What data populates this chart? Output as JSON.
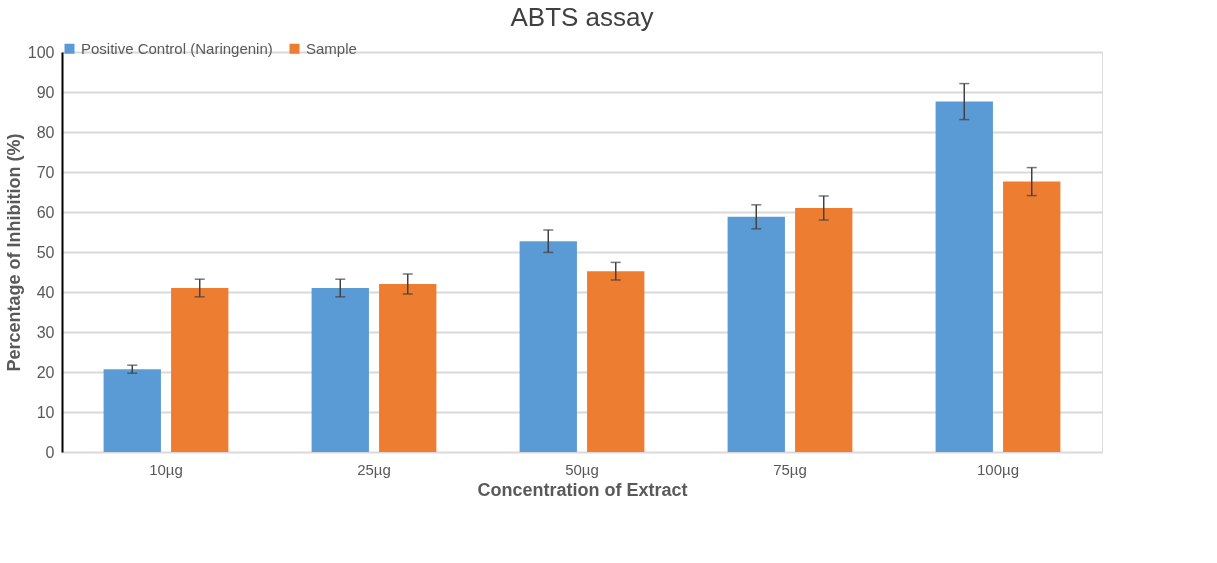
{
  "chart_data": {
    "type": "bar",
    "title": "ABTS assay",
    "xlabel": "Concentration of Extract",
    "ylabel": "Percentage of Inhibition (%)",
    "categories": [
      "10µg",
      "25µg",
      "50µg",
      "75µg",
      "100µg"
    ],
    "series": [
      {
        "name": "Positive  Control (Naringenin)",
        "color": "#5b9bd5",
        "values": [
          20.7,
          41,
          52.7,
          58.8,
          87.6
        ],
        "errors": [
          1,
          2.2,
          2.8,
          3,
          4.5
        ]
      },
      {
        "name": "Sample",
        "color": "#ed7d31",
        "values": [
          41,
          42,
          45.2,
          61,
          67.6
        ],
        "errors": [
          2.2,
          2.5,
          2.2,
          3,
          3.5
        ]
      }
    ],
    "ylim": [
      0,
      100
    ],
    "yticks": [
      0,
      10,
      20,
      30,
      40,
      50,
      60,
      70,
      80,
      90,
      100
    ],
    "grid": "y",
    "legend": "top"
  }
}
